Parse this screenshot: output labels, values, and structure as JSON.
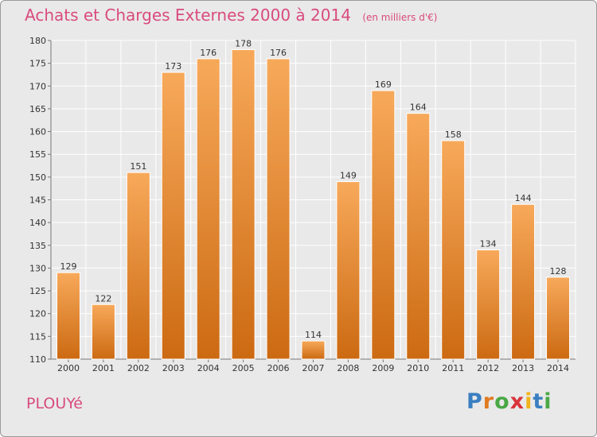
{
  "title": "Achats et Charges Externes 2000 à 2014",
  "unit_note": "(en milliers d'€)",
  "commune": "PLOUYé",
  "brand": {
    "letters": [
      "P",
      "r",
      "o",
      "x",
      "i",
      "t",
      "i"
    ],
    "colors": [
      "#3a7fc1",
      "#e07b22",
      "#4aa845",
      "#d9343b",
      "#f2b41a",
      "#3a7fc1",
      "#4aa845"
    ]
  },
  "colors": {
    "bar_top": "#f7a95a",
    "bar_bottom": "#cc6a12",
    "title": "#d94b7e",
    "background": "#e9e9e9"
  },
  "chart_data": {
    "type": "bar",
    "categories": [
      "2000",
      "2001",
      "2002",
      "2003",
      "2004",
      "2005",
      "2006",
      "2007",
      "2008",
      "2009",
      "2010",
      "2011",
      "2012",
      "2013",
      "2014"
    ],
    "values": [
      129,
      122,
      151,
      173,
      176,
      178,
      176,
      114,
      149,
      169,
      164,
      158,
      134,
      144,
      128
    ],
    "ylim": [
      110,
      180
    ],
    "yticks": [
      110,
      115,
      120,
      125,
      130,
      135,
      140,
      145,
      150,
      155,
      160,
      165,
      170,
      175,
      180
    ],
    "grid": true,
    "xlabel": "",
    "ylabel": ""
  }
}
